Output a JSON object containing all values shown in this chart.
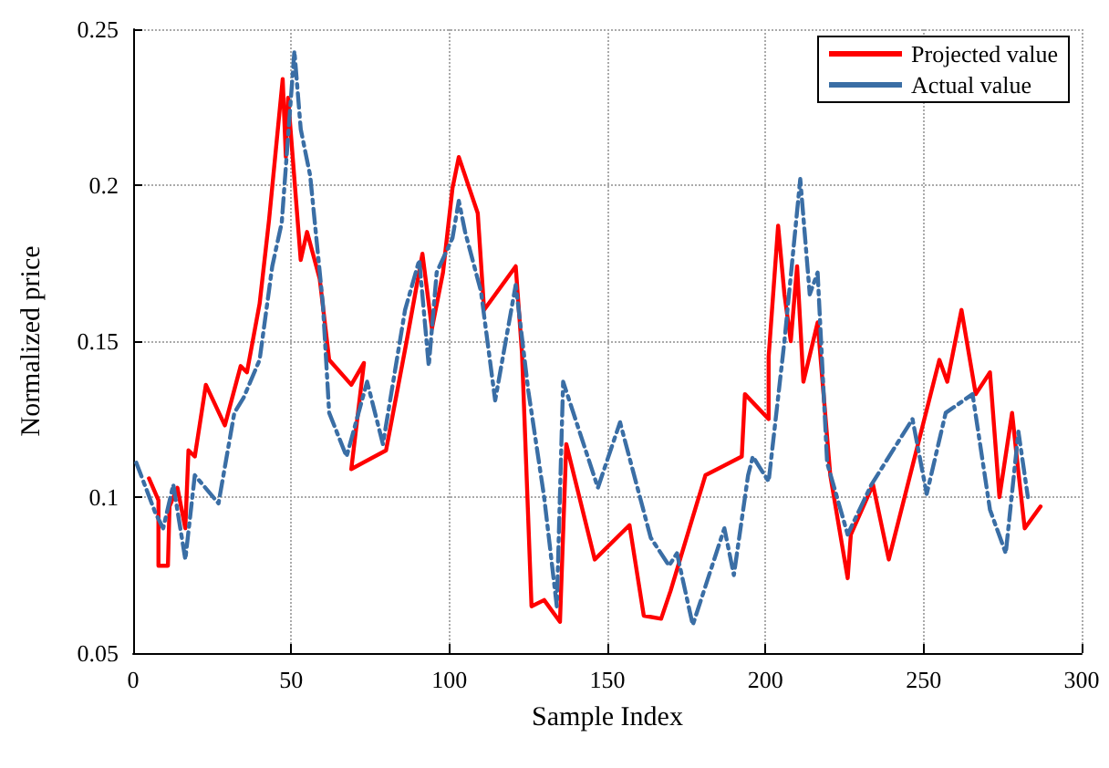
{
  "chart_data": {
    "type": "line",
    "xlabel": "Sample Index",
    "ylabel": "Normalized price",
    "xlim": [
      0,
      300
    ],
    "xticks": [
      0,
      50,
      100,
      150,
      200,
      250,
      300
    ],
    "ylim": [
      0.05,
      0.25
    ],
    "yticks": [
      0.05,
      0.1,
      0.15,
      0.2,
      0.25
    ],
    "grid": true,
    "legend": "top right",
    "marker": "none",
    "series": [
      {
        "name": "Projected value",
        "color": "#ff0000",
        "line_style": "solid",
        "x": [
          5,
          8,
          8,
          11,
          11.5,
          14,
          16.5,
          17.5,
          19.5,
          23,
          29,
          34,
          36,
          40,
          43,
          47.3,
          48.3,
          49,
          53,
          55,
          59,
          62,
          69,
          73,
          69,
          80,
          86.5,
          91.5,
          94.5,
          98,
          101,
          103,
          109,
          111,
          121,
          123,
          126,
          130,
          135,
          137,
          146,
          149,
          157,
          161.5,
          167,
          170,
          181,
          192.5,
          193.5,
          201,
          201,
          204,
          206,
          208,
          210,
          212,
          216.5,
          220.5,
          226,
          227,
          234,
          239,
          255,
          257.5,
          262,
          266.5,
          271,
          274,
          278,
          280,
          282,
          287
        ],
        "values": [
          0.106,
          0.099,
          0.078,
          0.078,
          0.097,
          0.103,
          0.09,
          0.115,
          0.113,
          0.136,
          0.123,
          0.142,
          0.14,
          0.162,
          0.189,
          0.234,
          0.209,
          0.228,
          0.176,
          0.185,
          0.17,
          0.144,
          0.136,
          0.143,
          0.109,
          0.115,
          0.15,
          0.178,
          0.154,
          0.172,
          0.199,
          0.209,
          0.191,
          0.16,
          0.174,
          0.146,
          0.065,
          0.067,
          0.06,
          0.117,
          0.08,
          0.083,
          0.091,
          0.062,
          0.061,
          0.07,
          0.107,
          0.113,
          0.133,
          0.125,
          0.145,
          0.187,
          0.165,
          0.15,
          0.174,
          0.137,
          0.156,
          0.107,
          0.074,
          0.088,
          0.104,
          0.08,
          0.144,
          0.137,
          0.16,
          0.133,
          0.14,
          0.1,
          0.127,
          0.108,
          0.09,
          0.097
        ]
      },
      {
        "name": "Actual value",
        "color": "#3a6ea5",
        "line_style": "dashdot",
        "x": [
          1,
          7,
          9.5,
          12.7,
          16.5,
          19.5,
          27,
          32,
          35,
          40,
          44,
          47,
          51,
          53,
          56,
          60,
          62,
          67.5,
          74,
          79,
          86,
          90.5,
          93.5,
          96,
          101,
          103,
          105,
          110,
          114.5,
          121,
          125,
          130,
          134,
          136,
          147,
          154,
          163.7,
          169.5,
          172,
          177,
          187,
          190,
          194.5,
          196,
          201,
          206,
          211,
          214,
          216.5,
          219.5,
          226,
          233.5,
          246.5,
          251,
          257,
          265.5,
          271,
          276,
          280,
          283
        ],
        "values": [
          0.111,
          0.095,
          0.09,
          0.104,
          0.08,
          0.107,
          0.098,
          0.127,
          0.132,
          0.144,
          0.174,
          0.188,
          0.243,
          0.218,
          0.203,
          0.162,
          0.127,
          0.113,
          0.137,
          0.117,
          0.16,
          0.176,
          0.142,
          0.172,
          0.183,
          0.195,
          0.185,
          0.166,
          0.131,
          0.168,
          0.134,
          0.1,
          0.065,
          0.137,
          0.103,
          0.124,
          0.087,
          0.078,
          0.082,
          0.059,
          0.09,
          0.075,
          0.107,
          0.113,
          0.105,
          0.15,
          0.202,
          0.165,
          0.172,
          0.111,
          0.088,
          0.104,
          0.125,
          0.101,
          0.127,
          0.133,
          0.096,
          0.082,
          0.121,
          0.1
        ]
      }
    ]
  }
}
